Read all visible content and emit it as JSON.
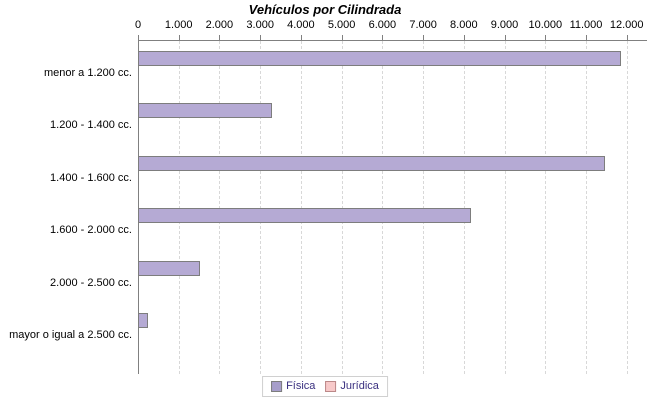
{
  "title": "Vehículos por Cilindrada",
  "chart_data": {
    "type": "bar",
    "orientation": "horizontal",
    "title": "Vehículos por Cilindrada",
    "categories": [
      "menor a 1.200 cc.",
      "1.200 - 1.400 cc.",
      "1.400 - 1.600 cc.",
      "1.600 - 2.000 cc.",
      "2.000 - 2.500 cc.",
      "mayor o igual a 2.500 cc."
    ],
    "series": [
      {
        "name": "Física",
        "color": "#b5aad4",
        "border_color": "#7d7d7d",
        "values": [
          11800,
          3250,
          11420,
          8130,
          1480,
          200
        ]
      },
      {
        "name": "Jurídica",
        "color": "#f7c9c9",
        "border_color": "#bb8888",
        "values": [
          0,
          0,
          0,
          0,
          0,
          0
        ]
      }
    ],
    "xlim": [
      0,
      12000
    ],
    "x_ticks": [
      {
        "label": "0",
        "value": 0
      },
      {
        "label": "1.000",
        "value": 1000
      },
      {
        "label": "2.000",
        "value": 2000
      },
      {
        "label": "3.000",
        "value": 3000
      },
      {
        "label": "4.000",
        "value": 4000
      },
      {
        "label": "5.000",
        "value": 5000
      },
      {
        "label": "6.000",
        "value": 6000
      },
      {
        "label": "7.000",
        "value": 7000
      },
      {
        "label": "8.000",
        "value": 8000
      },
      {
        "label": "9.000",
        "value": 9000
      },
      {
        "label": "10.000",
        "value": 10000
      },
      {
        "label": "11.000",
        "value": 11000
      },
      {
        "label": "12.000",
        "value": 12000
      }
    ],
    "grid": "vertical-dashed",
    "legend_position": "bottom-center"
  },
  "legend": {
    "items": [
      {
        "label": "Física",
        "fill": "#a79ecb",
        "border": "#7d7d7d"
      },
      {
        "label": "Jurídica",
        "fill": "#f7c9c9",
        "border": "#bb8888"
      }
    ]
  },
  "colors": {
    "axis": "#808080",
    "gridline": "#d8d8d8",
    "text": "#000000",
    "legend_text": "#3a3080",
    "legend_border": "#d0d0d0",
    "background": "#ffffff"
  }
}
